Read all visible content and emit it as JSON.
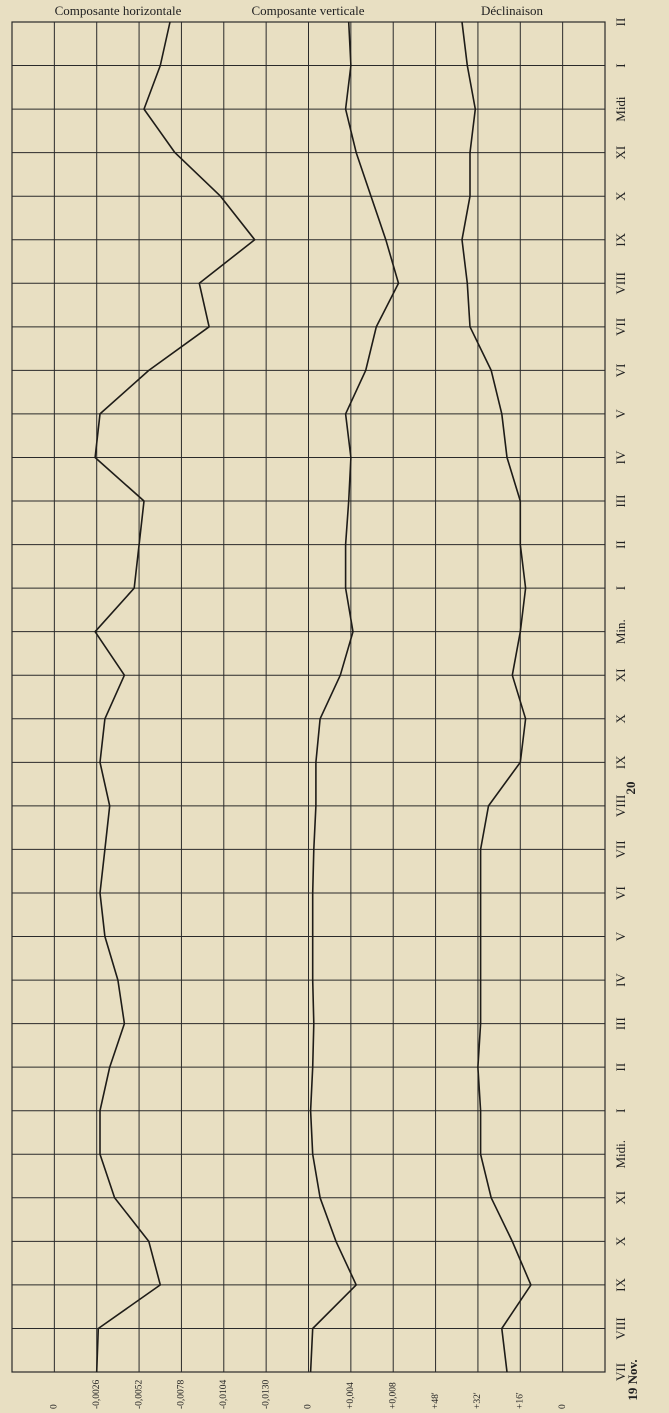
{
  "chart_data": {
    "type": "line",
    "categories": [
      "VII",
      "VIII",
      "IX",
      "X",
      "XI",
      "Midi.",
      "I",
      "II",
      "III",
      "IV",
      "V",
      "VI",
      "VII",
      "VIII",
      "IX",
      "X",
      "XI",
      "Min.",
      "I",
      "II",
      "III",
      "IV",
      "V",
      "VI",
      "VII",
      "VIII",
      "IX",
      "X",
      "XI",
      "Midi",
      "I",
      "II"
    ],
    "annotations": [
      "20",
      "19 Nov."
    ],
    "color": "#1e1c18",
    "grid": true,
    "series": [
      {
        "name": "Composante horizontale",
        "xlim": [
          0.0026,
          -0.0156
        ],
        "xticks": [
          0,
          {
            "value": -0.0026,
            "label": "-0,0026"
          },
          {
            "value": -0.0052,
            "label": "-0,0052"
          },
          {
            "value": -0.0078,
            "label": "-0,0078"
          },
          {
            "value": -0.0104,
            "label": "-0,0104"
          },
          {
            "value": -0.013,
            "label": "-0,0130"
          }
        ],
        "values": [
          -0.0026,
          -0.0027,
          -0.0065,
          -0.0058,
          -0.0037,
          -0.0028,
          -0.0028,
          -0.0034,
          -0.0043,
          -0.0039,
          -0.0031,
          -0.0028,
          -0.0031,
          -0.0034,
          -0.0028,
          -0.0031,
          -0.0043,
          -0.0025,
          -0.0049,
          -0.0052,
          -0.0055,
          -0.0025,
          -0.0028,
          -0.0058,
          -0.0095,
          -0.0089,
          -0.0123,
          -0.0102,
          -0.0074,
          -0.0055,
          -0.0065,
          -0.0071
        ]
      },
      {
        "name": "Composante verticale",
        "xlim": [
          -0.004,
          0.012
        ],
        "xticks": [
          0,
          {
            "value": 0.004,
            "label": "+0,004"
          },
          {
            "value": 0.008,
            "label": "+0,008"
          }
        ],
        "values": [
          0.0002,
          0.0004,
          0.0045,
          0.0026,
          0.0011,
          0.0004,
          0.0002,
          0.0004,
          0.0005,
          0.0004,
          0.0004,
          0.0004,
          0.0005,
          0.0007,
          0.0007,
          0.0011,
          0.003,
          0.0042,
          0.0035,
          0.0035,
          0.0038,
          0.004,
          0.0035,
          0.0054,
          0.0064,
          0.0085,
          0.0073,
          0.0059,
          0.0045,
          0.0035,
          0.004,
          0.0038
        ]
      },
      {
        "name": "Déclinaison",
        "xlim": [
          64,
          -16
        ],
        "xticks": [
          {
            "value": 48,
            "label": "+48'"
          },
          {
            "value": 32,
            "label": "+32'"
          },
          {
            "value": 16,
            "label": "+16'"
          },
          0
        ],
        "values": [
          21,
          23,
          12,
          19,
          27,
          31,
          31,
          32,
          31,
          31,
          31,
          31,
          31,
          28,
          16,
          14,
          19,
          16,
          14,
          16,
          16,
          21,
          23,
          27,
          35,
          36,
          38,
          35,
          35,
          33,
          36,
          38
        ]
      }
    ]
  }
}
